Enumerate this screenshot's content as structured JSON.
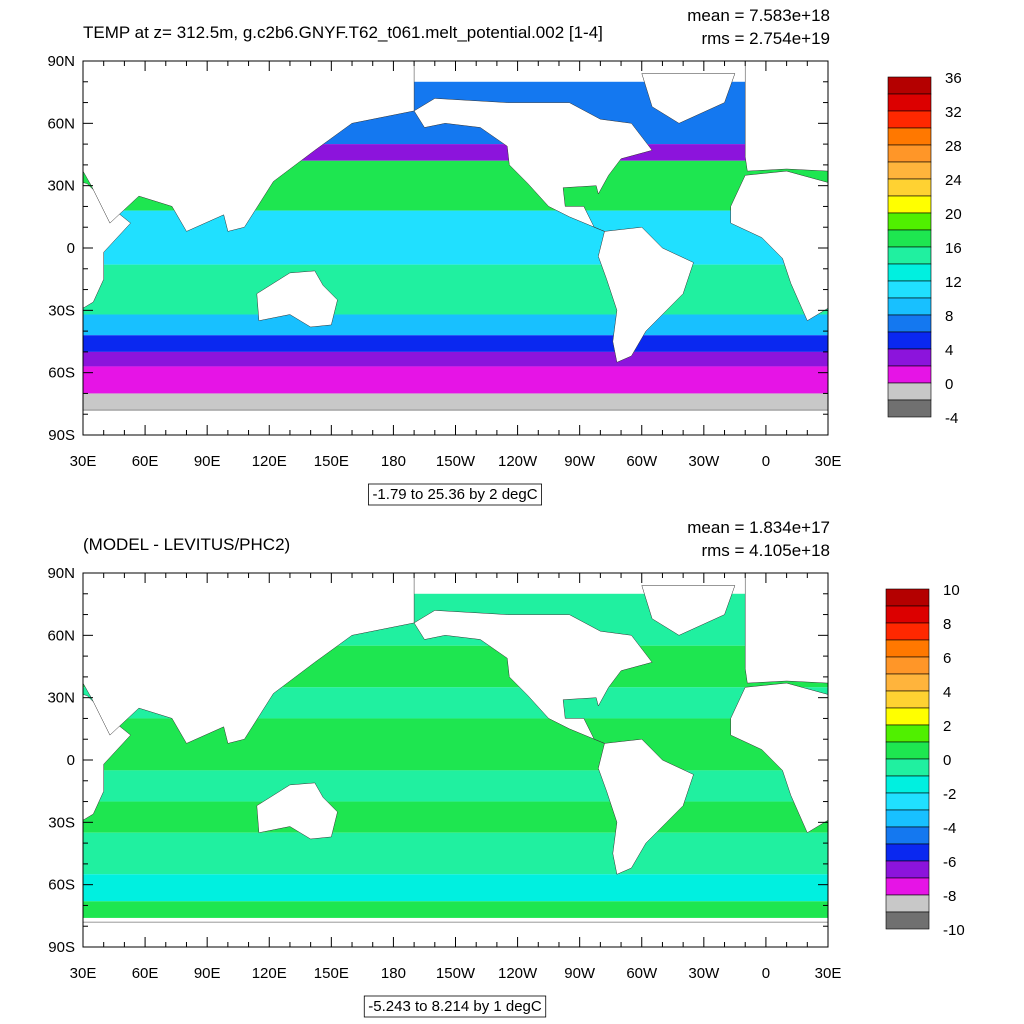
{
  "panels": [
    {
      "title": "TEMP at z= 312.5m, g.c2b6.GNYF.T62_t061.melt_potential.002 [1-4]",
      "mean": "mean = 7.583e+18",
      "rms": "rms = 2.754e+19",
      "lat_labels": [
        "90N",
        "60N",
        "30N",
        "0",
        "30S",
        "60S",
        "90S"
      ],
      "lon_labels": [
        "30E",
        "60E",
        "90E",
        "120E",
        "150E",
        "180",
        "150W",
        "120W",
        "90W",
        "60W",
        "30W",
        "0",
        "30E"
      ],
      "range_label": "-1.79 to 25.36 by 2 degC",
      "colorbar": {
        "labels": [
          "36",
          "32",
          "28",
          "24",
          "20",
          "16",
          "12",
          "8",
          "4",
          "0",
          "-4"
        ],
        "colors": [
          "#b40000",
          "#dc0000",
          "#ff2800",
          "#ff7800",
          "#ff9628",
          "#ffb43c",
          "#ffd232",
          "#ffff00",
          "#50f000",
          "#1ee650",
          "#20f0a0",
          "#00f0e0",
          "#20e0ff",
          "#18c0ff",
          "#1478f0",
          "#0a28f0",
          "#8c14dc",
          "#e614e6",
          "#c8c8c8",
          "#707070"
        ]
      }
    },
    {
      "title": "(MODEL - LEVITUS/PHC2)",
      "mean": "mean = 1.834e+17",
      "rms": "rms = 4.105e+18",
      "lat_labels": [
        "90N",
        "60N",
        "30N",
        "0",
        "30S",
        "60S",
        "90S"
      ],
      "lon_labels": [
        "30E",
        "60E",
        "90E",
        "120E",
        "150E",
        "180",
        "150W",
        "120W",
        "90W",
        "60W",
        "30W",
        "0",
        "30E"
      ],
      "range_label": "-5.243 to 8.214 by 1 degC",
      "colorbar": {
        "labels": [
          "10",
          "8",
          "6",
          "4",
          "2",
          "0",
          "-2",
          "-4",
          "-6",
          "-8",
          "-10"
        ],
        "colors": [
          "#b40000",
          "#dc0000",
          "#ff2800",
          "#ff7800",
          "#ff9628",
          "#ffb43c",
          "#ffd232",
          "#ffff00",
          "#50f000",
          "#1ee650",
          "#20f0a0",
          "#00f0e0",
          "#20e0ff",
          "#18c0ff",
          "#1478f0",
          "#0a28f0",
          "#8c14dc",
          "#e614e6",
          "#c8c8c8",
          "#707070"
        ]
      }
    }
  ]
}
